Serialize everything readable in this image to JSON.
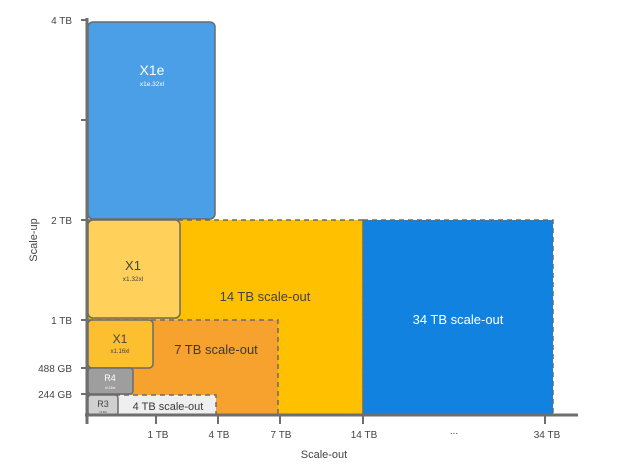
{
  "y_axis": {
    "label": "Scale-up",
    "ticks": [
      "4 TB",
      "2 TB",
      "1 TB",
      "488 GB",
      "244 GB"
    ]
  },
  "x_axis": {
    "label": "Scale-out",
    "ticks": [
      "1 TB",
      "4 TB",
      "7 TB",
      "14 TB",
      "...",
      "34 TB"
    ]
  },
  "blocks": {
    "x1e": {
      "title": "X1e",
      "subtitle": "x1e.32xl",
      "color": "#4A9FE6"
    },
    "x1_32": {
      "title": "X1",
      "subtitle": "x1.32xl",
      "color": "#FFD15A"
    },
    "x1_16": {
      "title": "X1",
      "subtitle": "x1.16xl",
      "color": "#FBBF2F"
    },
    "r4": {
      "title": "R4",
      "subtitle": "r4.16xl",
      "color": "#9E9E9E"
    },
    "r3": {
      "title": "R3",
      "subtitle": "r3.8xl",
      "color": "#D0D0D0"
    }
  },
  "scale_out": {
    "s4": {
      "label": "4 TB scale-out",
      "color": "#EFEFEF"
    },
    "s7": {
      "label": "7 TB scale-out",
      "color": "#F7A22E"
    },
    "s14": {
      "label": "14 TB scale-out",
      "color": "#FFC000"
    },
    "s34": {
      "label": "34 TB scale-out",
      "color": "#1282E0"
    }
  },
  "colors": {
    "axis": "#6E6E6E",
    "label": "#444444"
  }
}
